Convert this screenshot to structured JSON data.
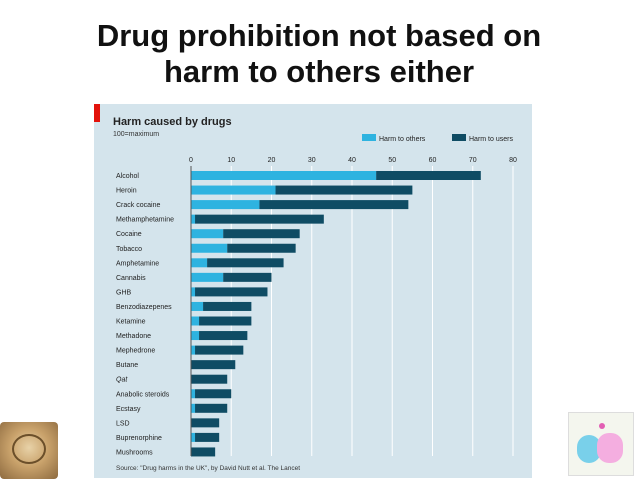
{
  "slide": {
    "title_line1": "Drug prohibition not based on",
    "title_line2": "harm to others either"
  },
  "chart_data": {
    "type": "bar",
    "orientation": "horizontal",
    "stacked": true,
    "title": "Harm caused by drugs",
    "subtitle": "100=maximum",
    "source": "Source: \"Drug harms in the UK\", by David Nutt et al. The Lancet",
    "xlim": [
      0,
      80
    ],
    "xticks": [
      0,
      10,
      20,
      30,
      40,
      50,
      60,
      70,
      80
    ],
    "legend_position": "top-right",
    "grid": true,
    "categories": [
      "Alcohol",
      "Heroin",
      "Crack cocaine",
      "Methamphetamine",
      "Cocaine",
      "Tobacco",
      "Amphetamine",
      "Cannabis",
      "GHB",
      "Benzodiazepenes",
      "Ketamine",
      "Methadone",
      "Mephedrone",
      "Butane",
      "Qat",
      "Anabolic steroids",
      "Ecstasy",
      "LSD",
      "Buprenorphine",
      "Mushrooms"
    ],
    "series": [
      {
        "name": "Harm to others",
        "color": "#2eb3e0",
        "values": [
          46,
          21,
          17,
          1,
          8,
          9,
          4,
          8,
          1,
          3,
          2,
          2,
          1,
          0,
          0,
          1,
          1,
          0,
          1,
          0
        ]
      },
      {
        "name": "Harm to users",
        "color": "#0f4c64",
        "values": [
          26,
          34,
          37,
          32,
          19,
          17,
          19,
          12,
          18,
          12,
          13,
          12,
          12,
          11,
          9,
          9,
          8,
          7,
          6,
          6
        ]
      }
    ]
  }
}
